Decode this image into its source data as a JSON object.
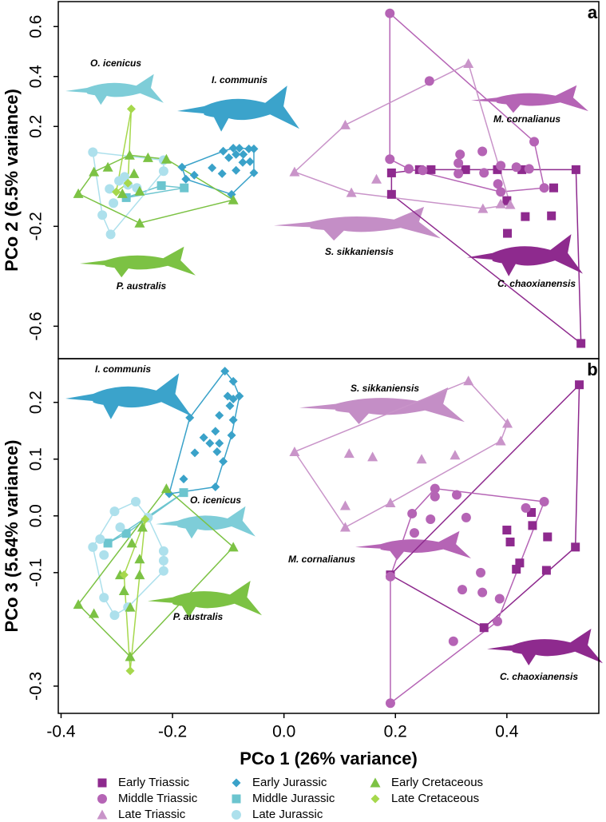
{
  "chart_data": [
    {
      "type": "scatter",
      "panel_label": "a",
      "ylabel": "PCo 2 (6.5% variance)",
      "xlim": [
        -0.405,
        0.565
      ],
      "ylim": [
        -0.73,
        0.7
      ],
      "yticks": [
        0.6,
        0.4,
        0.2,
        -0.2,
        -0.6
      ],
      "annotations": [
        "O. icenicus",
        "I. communis",
        "M. cornalianus",
        "S. sikkaniensis",
        "P. australis",
        "C. chaoxianensis"
      ],
      "series": [
        {
          "name": "Early Triassic",
          "color": "#8e2a8e",
          "marker": "square",
          "x": [
            0.193,
            0.193,
            0.243,
            0.264,
            0.326,
            0.383,
            0.427,
            0.524,
            0.484,
            0.4,
            0.433,
            0.48,
            0.401,
            0.533
          ],
          "y": [
            0.014,
            -0.072,
            0.027,
            0.027,
            0.027,
            0.027,
            0.027,
            0.027,
            -0.046,
            -0.097,
            -0.161,
            -0.158,
            -0.228,
            -0.669
          ]
        },
        {
          "name": "Middle Triassic",
          "color": "#b564b5",
          "marker": "circle",
          "x": [
            0.19,
            0.261,
            0.316,
            0.356,
            0.313,
            0.313,
            0.249,
            0.224,
            0.359,
            0.389,
            0.417,
            0.44,
            0.449,
            0.384,
            0.389,
            0.467,
            0.19
          ],
          "y": [
            0.653,
            0.382,
            0.088,
            0.1,
            0.053,
            0.011,
            0.024,
            0.03,
            0.014,
            0.043,
            0.037,
            0.03,
            0.139,
            -0.03,
            -0.062,
            -0.046,
            0.069
          ]
        },
        {
          "name": "Late Triassic",
          "color": "#c994c9",
          "marker": "triangle",
          "x": [
            0.019,
            0.11,
            0.331,
            0.357,
            0.389,
            0.406,
            0.121,
            0.166
          ],
          "y": [
            0.018,
            0.206,
            0.452,
            -0.129,
            -0.11,
            -0.113,
            -0.065,
            -0.011
          ]
        },
        {
          "name": "Early Jurassic",
          "color": "#3aa2c9",
          "marker": "diamond",
          "x": [
            -0.091,
            -0.08,
            -0.063,
            -0.054,
            -0.086,
            -0.073,
            -0.099,
            -0.074,
            -0.061,
            -0.054,
            -0.086,
            -0.111,
            -0.129,
            -0.183,
            -0.161,
            -0.176,
            -0.094,
            -0.109
          ],
          "y": [
            0.113,
            0.113,
            0.11,
            0.11,
            0.088,
            0.088,
            0.075,
            0.056,
            0.059,
            0.014,
            0.024,
            0.011,
            0.034,
            0.037,
            0.005,
            -0.011,
            -0.072,
            0.101
          ]
        },
        {
          "name": "Middle Jurassic",
          "color": "#6cc5cf",
          "marker": "square",
          "x": [
            -0.283,
            -0.22,
            -0.179
          ],
          "y": [
            -0.085,
            -0.037,
            -0.046
          ]
        },
        {
          "name": "Late Jurassic",
          "color": "#ade0ec",
          "marker": "circle",
          "x": [
            -0.343,
            -0.313,
            -0.296,
            -0.28,
            -0.264,
            -0.326,
            -0.311,
            -0.306,
            -0.286,
            -0.216,
            -0.216
          ],
          "y": [
            0.097,
            -0.05,
            -0.018,
            -0.034,
            -0.046,
            -0.155,
            -0.232,
            -0.107,
            -0.002,
            0.021,
            0.065
          ]
        },
        {
          "name": "Early Cretaceous",
          "color": "#7cc244",
          "marker": "triangle",
          "x": [
            -0.369,
            -0.341,
            -0.316,
            -0.277,
            -0.244,
            -0.211,
            -0.269,
            -0.259,
            -0.259,
            -0.091,
            -0.29
          ],
          "y": [
            -0.069,
            0.018,
            0.037,
            0.085,
            0.075,
            0.069,
            0.011,
            -0.059,
            -0.187,
            -0.094,
            -0.069
          ]
        },
        {
          "name": "Late Cretaceous",
          "color": "#a6d84c",
          "marker": "diamond",
          "x": [
            -0.274,
            -0.28,
            -0.301
          ],
          "y": [
            0.27,
            -0.027,
            -0.062
          ]
        }
      ]
    },
    {
      "type": "scatter",
      "panel_label": "b",
      "ylabel": "PCo 3 (5.64% variance)",
      "xlabel": "PCo 1 (26% variance)",
      "xlim": [
        -0.405,
        0.565
      ],
      "ylim": [
        -0.348,
        0.277
      ],
      "xticks": [
        -0.4,
        -0.2,
        {
          "value": 0,
          "label": "0.0"
        },
        0.2,
        0.4
      ],
      "yticks": [
        0.2,
        0.1,
        {
          "value": 0,
          "label": "0.0"
        },
        -0.1,
        -0.3
      ],
      "annotations": [
        "I. communis",
        "S. sikkaniensis",
        "O. icenicus",
        "M. cornalianus",
        "P. australis",
        "C. chaoxianensis"
      ],
      "series": [
        {
          "color": "#8e2a8e",
          "marker": "square",
          "x": [
            0.53,
            0.523,
            0.473,
            0.444,
            0.446,
            0.4,
            0.406,
            0.423,
            0.417,
            0.471,
            0.359,
            0.191
          ],
          "y": [
            0.231,
            -0.055,
            -0.037,
            0.006,
            -0.017,
            -0.025,
            -0.046,
            -0.083,
            -0.094,
            -0.096,
            -0.197,
            -0.104
          ]
        },
        {
          "color": "#b564b5",
          "marker": "circle",
          "x": [
            0.191,
            0.191,
            0.23,
            0.234,
            0.263,
            0.271,
            0.271,
            0.31,
            0.327,
            0.353,
            0.32,
            0.356,
            0.387,
            0.383,
            0.304,
            0.434,
            0.467
          ],
          "y": [
            -0.33,
            -0.107,
            0.004,
            -0.03,
            -0.006,
            0.048,
            0.034,
            0.037,
            -0.003,
            -0.1,
            -0.13,
            -0.135,
            -0.146,
            -0.186,
            -0.221,
            0.014,
            0.025
          ]
        },
        {
          "color": "#c994c9",
          "marker": "triangle",
          "x": [
            0.019,
            0.331,
            0.401,
            0.389,
            0.117,
            0.159,
            0.247,
            0.307,
            0.191,
            0.11,
            0.11
          ],
          "y": [
            0.113,
            0.238,
            0.163,
            0.132,
            0.11,
            0.104,
            0.1,
            0.107,
            0.023,
            0.018,
            -0.02
          ]
        },
        {
          "color": "#3aa2c9",
          "marker": "diamond",
          "x": [
            -0.106,
            -0.091,
            -0.101,
            -0.08,
            -0.091,
            -0.097,
            -0.116,
            -0.091,
            -0.123,
            -0.094,
            -0.116,
            -0.133,
            -0.12,
            -0.109,
            -0.169,
            -0.144,
            -0.16,
            -0.18,
            -0.123,
            -0.206
          ],
          "y": [
            0.255,
            0.237,
            0.211,
            0.211,
            0.206,
            0.194,
            0.177,
            0.169,
            0.149,
            0.142,
            0.128,
            0.128,
            0.113,
            0.096,
            0.173,
            0.138,
            0.111,
            0.065,
            0.051,
            0.039
          ]
        },
        {
          "color": "#6cc5cf",
          "marker": "square",
          "x": [
            -0.18,
            -0.316,
            -0.283
          ],
          "y": [
            0.041,
            -0.048,
            -0.031
          ]
        },
        {
          "color": "#ade0ec",
          "marker": "circle",
          "x": [
            -0.304,
            -0.266,
            -0.294,
            -0.33,
            -0.323,
            -0.343,
            -0.323,
            -0.304,
            -0.28,
            -0.216,
            -0.216,
            -0.216,
            -0.244
          ],
          "y": [
            0.008,
            0.025,
            -0.02,
            -0.041,
            -0.069,
            -0.055,
            -0.144,
            -0.175,
            -0.161,
            -0.097,
            -0.079,
            -0.062,
            -0.003
          ]
        },
        {
          "color": "#7cc244",
          "marker": "triangle",
          "x": [
            -0.369,
            -0.341,
            -0.211,
            -0.091,
            -0.276,
            -0.259,
            -0.259,
            -0.273,
            -0.254,
            -0.287,
            -0.276,
            -0.294
          ],
          "y": [
            -0.156,
            -0.172,
            0.048,
            -0.055,
            -0.248,
            -0.104,
            -0.076,
            -0.048,
            -0.02,
            -0.132,
            -0.161,
            -0.104
          ]
        },
        {
          "color": "#a6d84c",
          "marker": "diamond",
          "x": [
            -0.276,
            -0.249,
            -0.287
          ],
          "y": [
            -0.273,
            -0.006,
            -0.104
          ]
        }
      ]
    }
  ]
}
